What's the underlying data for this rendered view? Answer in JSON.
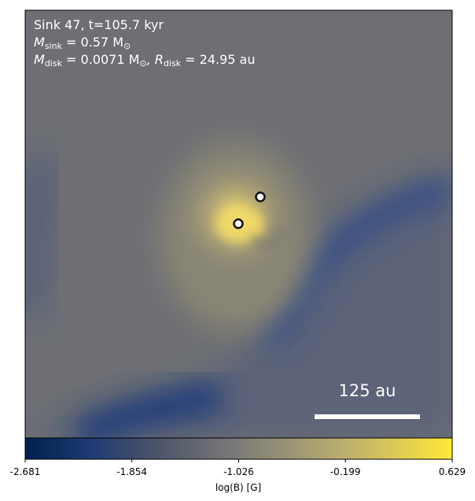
{
  "panel": {
    "annotation_lines": [
      [
        {
          "text": "Sink 47, t=105.7 kyr"
        }
      ],
      [
        {
          "text": "M"
        },
        {
          "sub": "sink"
        },
        {
          "text": " = 0.57 M"
        },
        {
          "sub": "⊙"
        }
      ],
      [
        {
          "text": "M"
        },
        {
          "sub": "disk"
        },
        {
          "text": " = 0.0071 M"
        },
        {
          "sub": "⊙"
        },
        {
          "text": ", R"
        },
        {
          "sub": "disk"
        },
        {
          "text": " = 24.95 au"
        }
      ]
    ],
    "scale_bar_label": "125 au"
  },
  "colorbar": {
    "label": "log(B) [G]",
    "lim": [
      -2.681,
      0.629
    ],
    "ticks": [
      -2.681,
      -1.854,
      -1.026,
      -0.199,
      0.629
    ]
  }
}
